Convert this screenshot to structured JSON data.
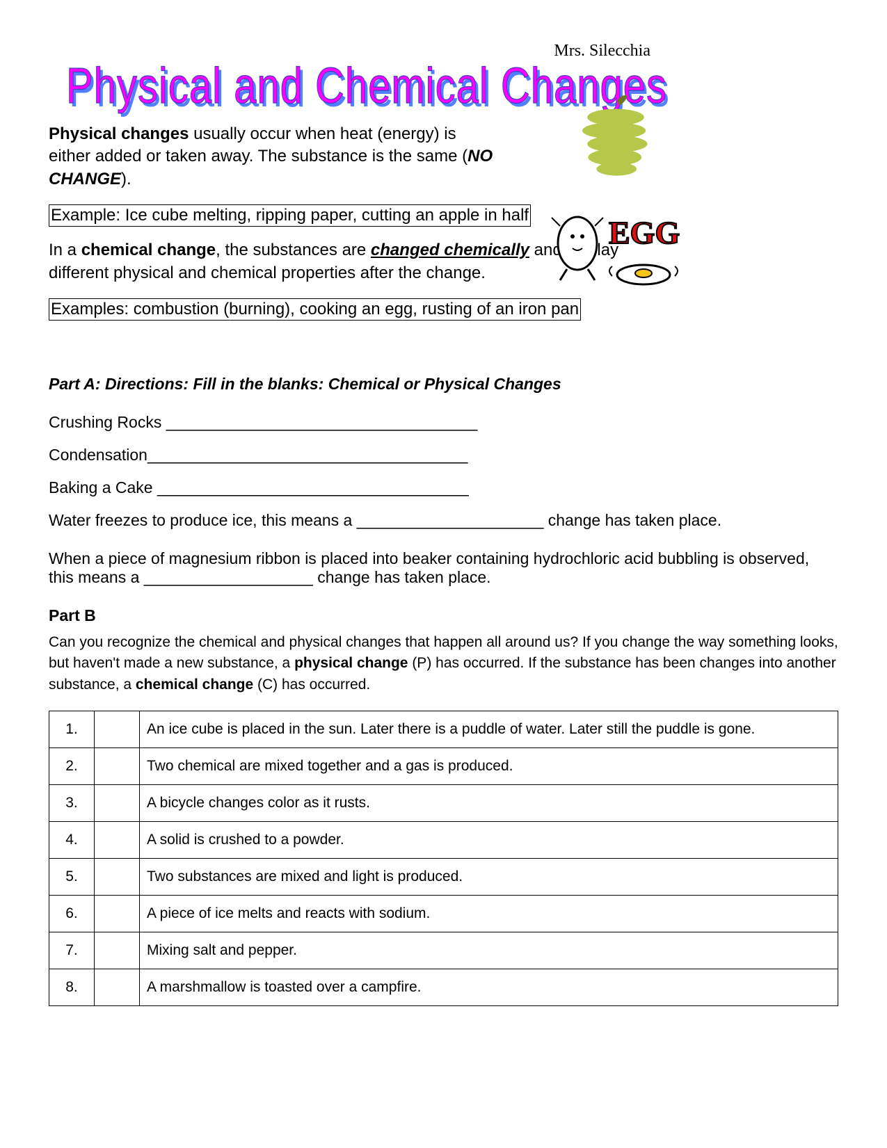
{
  "teacher": "Mrs. Silecchia",
  "title": "Physical and Chemical Changes",
  "intro1_a": "Physical changes",
  "intro1_b": " usually occur when heat (energy) is either added or taken away. The substance is the same (",
  "intro1_c": "NO CHANGE",
  "intro1_d": ").",
  "example1": "Example: Ice cube melting, ripping paper, cutting an apple in half",
  "intro2_a": "In a ",
  "intro2_b": "chemical change",
  "intro2_c": ", the substances are ",
  "intro2_d": "changed chemically",
  "intro2_e": " and display different physical and chemical properties after the change.",
  "example2": "Examples: combustion (burning), cooking an egg, rusting of an iron pan",
  "partA": {
    "directions": "Part A: Directions: Fill in the blanks: Chemical or Physical Changes",
    "l1": "Crushing Rocks ___________________________________",
    "l2": "Condensation____________________________________",
    "l3": "Baking a Cake ___________________________________",
    "l4": "Water freezes to produce ice, this means a _____________________ change has taken place.",
    "l5a": "When a piece of magnesium ribbon is placed into beaker containing hydrochloric acid bubbling is observed, this means a ___________________ change has taken place."
  },
  "partB": {
    "head": "Part B",
    "text_a": "Can you recognize the chemical and physical changes that happen all around us?  If you change the way something looks, but haven't made a new substance, a ",
    "text_b": "physical change",
    "text_c": " (P) has occurred.  If the substance has been changes into another substance, a ",
    "text_d": "chemical change",
    "text_e": " (C) has occurred.",
    "rows": [
      {
        "n": "1.",
        "t": "An ice cube is placed in the sun.  Later there is a puddle of water.  Later still the puddle is gone."
      },
      {
        "n": "2.",
        "t": "Two chemical are mixed together and a gas is produced."
      },
      {
        "n": "3.",
        "t": "A bicycle changes color as it rusts."
      },
      {
        "n": "4.",
        "t": "A solid is crushed to a powder."
      },
      {
        "n": "5.",
        "t": "Two substances are mixed and light is produced."
      },
      {
        "n": "6.",
        "t": "A piece of ice melts and reacts with sodium."
      },
      {
        "n": "7.",
        "t": "Mixing salt and pepper."
      },
      {
        "n": "8.",
        "t": "A marshmallow is toasted over a campfire."
      }
    ]
  },
  "colors": {
    "title_fill": "#ff00ff",
    "title_shadow": "#5080ff",
    "apple": "#b6c84a",
    "egg_red": "#d11"
  }
}
